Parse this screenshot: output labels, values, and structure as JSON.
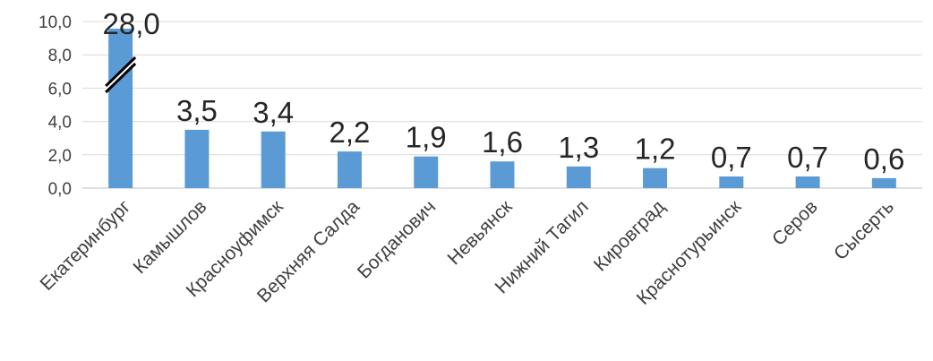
{
  "chart_data": {
    "type": "bar",
    "categories": [
      "Екатеринбург",
      "Камышлов",
      "Красноуфимск",
      "Верхняя Салда",
      "Богданович",
      "Невьянск",
      "Нижний Тагил",
      "Кировград",
      "Краснотурьинск",
      "Серов",
      "Сысерть"
    ],
    "values": [
      28.0,
      3.5,
      3.4,
      2.2,
      1.9,
      1.6,
      1.3,
      1.2,
      0.7,
      0.7,
      0.6
    ],
    "data_labels": [
      "28,0",
      "3,5",
      "3,4",
      "2,2",
      "1,9",
      "1,6",
      "1,3",
      "1,2",
      "0,7",
      "0,7",
      "0,6"
    ],
    "yticks": [
      "0,0",
      "2,0",
      "4,0",
      "6,0",
      "8,0",
      "10,0"
    ],
    "ylim": [
      0,
      10
    ],
    "axis_break": true,
    "grid": true,
    "colors": {
      "bar": "#5b9bd5",
      "grid": "#d9d9d9",
      "text": "#404040"
    }
  }
}
